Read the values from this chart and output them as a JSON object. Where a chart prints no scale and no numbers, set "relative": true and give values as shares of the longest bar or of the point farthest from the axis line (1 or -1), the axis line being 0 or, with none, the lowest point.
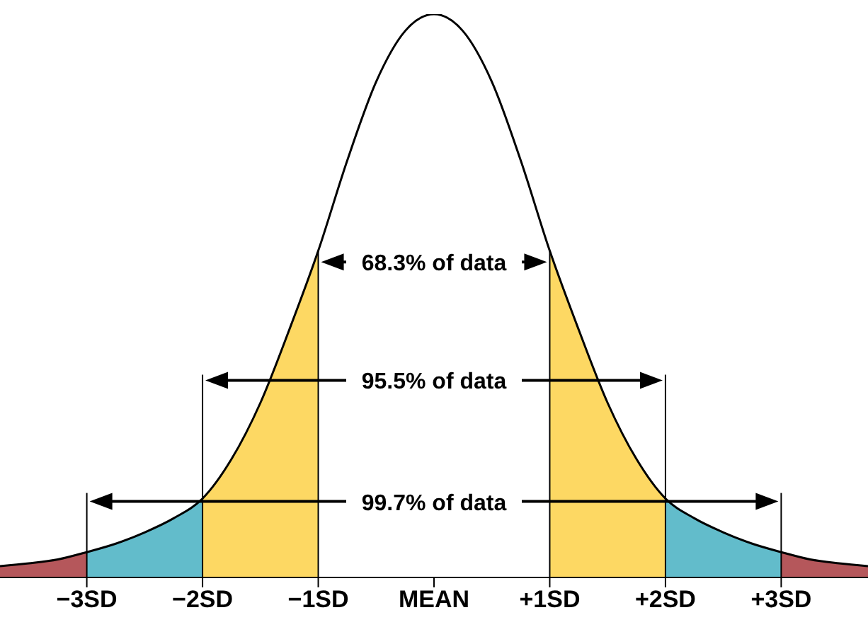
{
  "chart_data": {
    "type": "area",
    "relative": true,
    "xlim": [
      -3.75,
      3.75
    ],
    "xticks": [
      {
        "value": -3,
        "label": "−3SD"
      },
      {
        "value": -2,
        "label": "−2SD"
      },
      {
        "value": -1,
        "label": "−1SD"
      },
      {
        "value": 0,
        "label": "MEAN"
      },
      {
        "value": 1,
        "label": "+1SD"
      },
      {
        "value": 2,
        "label": "+2SD"
      },
      {
        "value": 3,
        "label": "+3SD"
      }
    ],
    "series": [
      {
        "color": "#b5575b",
        "x": [
          -3.75,
          -3.5,
          -3.25,
          -3
        ],
        "values": [
          0.02,
          0.025,
          0.032,
          0.045
        ]
      },
      {
        "color": "#62bccb",
        "x": [
          -3,
          -2.75,
          -2.5,
          -2.25,
          -2
        ],
        "values": [
          0.045,
          0.06,
          0.08,
          0.105,
          0.14
        ]
      },
      {
        "color": "#fdd863",
        "x": [
          -2,
          -1.75,
          -1.5,
          -1.25,
          -1
        ],
        "values": [
          0.14,
          0.21,
          0.31,
          0.44,
          0.58
        ]
      },
      {
        "color": "#fdd863",
        "x": [
          1,
          1.25,
          1.5,
          1.75,
          2
        ],
        "values": [
          0.58,
          0.44,
          0.31,
          0.21,
          0.14
        ]
      },
      {
        "color": "#62bccb",
        "x": [
          2,
          2.25,
          2.5,
          2.75,
          3
        ],
        "values": [
          0.14,
          0.105,
          0.08,
          0.06,
          0.045
        ]
      },
      {
        "color": "#b5575b",
        "x": [
          3,
          3.25,
          3.5,
          3.75
        ],
        "values": [
          0.045,
          0.032,
          0.025,
          0.02
        ]
      },
      {
        "type": "line",
        "color": "#000000",
        "x": [
          -3.75,
          -3.5,
          -3.25,
          -3,
          -2.75,
          -2.5,
          -2.25,
          -2,
          -1.75,
          -1.5,
          -1.25,
          -1,
          -0.75,
          -0.5,
          -0.25,
          0,
          0.25,
          0.5,
          0.75,
          1,
          1.25,
          1.5,
          1.75,
          2,
          2.25,
          2.5,
          2.75,
          3,
          3.25,
          3.5,
          3.75
        ],
        "values": [
          0.02,
          0.025,
          0.032,
          0.045,
          0.06,
          0.08,
          0.105,
          0.14,
          0.21,
          0.31,
          0.44,
          0.58,
          0.74,
          0.88,
          0.97,
          1,
          0.97,
          0.88,
          0.74,
          0.58,
          0.44,
          0.31,
          0.21,
          0.14,
          0.105,
          0.08,
          0.06,
          0.045,
          0.032,
          0.025,
          0.02
        ]
      }
    ],
    "ref_lines": [
      {
        "axis": "x",
        "value": -1
      },
      {
        "axis": "x",
        "value": 1
      },
      {
        "axis": "x",
        "value": -2
      },
      {
        "axis": "x",
        "value": 2
      },
      {
        "axis": "x",
        "value": -3
      },
      {
        "axis": "x",
        "value": 3
      }
    ],
    "annotations": [
      "68.3% of data",
      "95.5% of data",
      "99.7% of data"
    ]
  }
}
